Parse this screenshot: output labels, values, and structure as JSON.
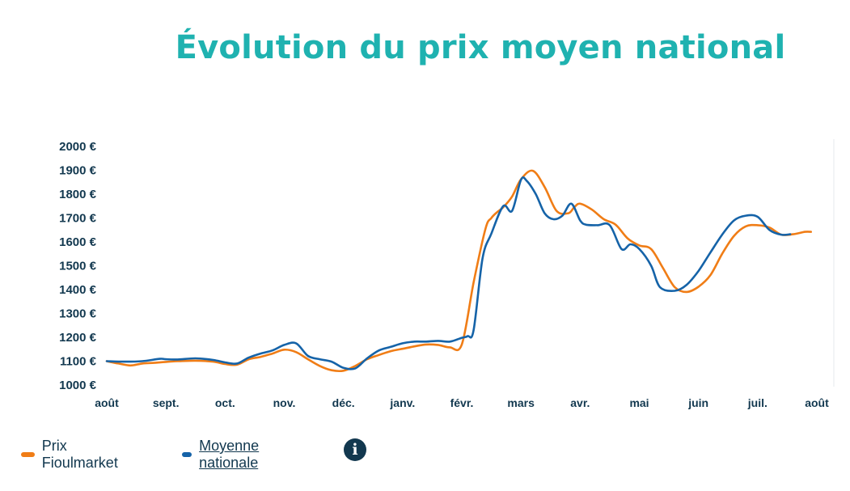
{
  "chart_data": {
    "type": "line",
    "title": "Évolution du prix moyen national",
    "xlabel": "",
    "ylabel": "",
    "ylim": [
      1000,
      2000
    ],
    "yticks": [
      "2000 €",
      "1900 €",
      "1800 €",
      "1700 €",
      "1600 €",
      "1500 €",
      "1400 €",
      "1300 €",
      "1200 €",
      "1100 €",
      "1000 €"
    ],
    "ytick_values": [
      2000,
      1900,
      1800,
      1700,
      1600,
      1500,
      1400,
      1300,
      1200,
      1100,
      1000
    ],
    "xticks": [
      "août",
      "sept.",
      "oct.",
      "nov.",
      "déc.",
      "janv.",
      "févr.",
      "mars",
      "avr.",
      "mai",
      "juin",
      "juil.",
      "août"
    ],
    "xlim": [
      0,
      12
    ],
    "grid": false,
    "legend_position": "bottom-left",
    "series": [
      {
        "name": "Prix Fioulmarket",
        "color": "#f07d16",
        "x": [
          0,
          0.2,
          0.4,
          0.6,
          0.8,
          1.0,
          1.2,
          1.5,
          1.8,
          2.0,
          2.2,
          2.4,
          2.6,
          2.8,
          3.0,
          3.2,
          3.4,
          3.6,
          3.8,
          4.0,
          4.2,
          4.4,
          4.6,
          4.8,
          5.0,
          5.2,
          5.4,
          5.6,
          5.8,
          6.0,
          6.2,
          6.4,
          6.5,
          6.6,
          6.7,
          6.85,
          7.0,
          7.2,
          7.4,
          7.6,
          7.8,
          7.9,
          8.0,
          8.2,
          8.4,
          8.6,
          8.8,
          9.0,
          9.2,
          9.4,
          9.6,
          9.8,
          10.0,
          10.2,
          10.4,
          10.6,
          10.8,
          11.0,
          11.2,
          11.4,
          11.6,
          11.8,
          11.9
        ],
        "values": [
          1100,
          1090,
          1082,
          1090,
          1093,
          1097,
          1100,
          1102,
          1098,
          1088,
          1085,
          1108,
          1118,
          1132,
          1148,
          1138,
          1108,
          1080,
          1062,
          1060,
          1080,
          1108,
          1126,
          1142,
          1152,
          1162,
          1170,
          1168,
          1158,
          1170,
          1430,
          1655,
          1700,
          1725,
          1745,
          1790,
          1862,
          1898,
          1830,
          1730,
          1720,
          1745,
          1760,
          1735,
          1695,
          1672,
          1615,
          1585,
          1570,
          1490,
          1410,
          1390,
          1412,
          1460,
          1550,
          1625,
          1665,
          1670,
          1660,
          1630,
          1632,
          1642,
          1642
        ]
      },
      {
        "name": "Moyenne nationale",
        "color": "#1563a8",
        "x": [
          0,
          0.3,
          0.6,
          0.9,
          1.0,
          1.2,
          1.5,
          1.8,
          2.0,
          2.2,
          2.4,
          2.6,
          2.8,
          3.0,
          3.2,
          3.4,
          3.6,
          3.8,
          4.0,
          4.2,
          4.4,
          4.6,
          4.8,
          5.0,
          5.2,
          5.4,
          5.6,
          5.8,
          6.0,
          6.1,
          6.2,
          6.35,
          6.5,
          6.7,
          6.85,
          7.0,
          7.1,
          7.25,
          7.4,
          7.55,
          7.7,
          7.85,
          8.0,
          8.1,
          8.3,
          8.5,
          8.7,
          8.85,
          9.0,
          9.2,
          9.35,
          9.6,
          9.8,
          10.0,
          10.2,
          10.4,
          10.6,
          10.8,
          11.0,
          11.2,
          11.4,
          11.55
        ],
        "values": [
          1100,
          1098,
          1100,
          1110,
          1108,
          1107,
          1112,
          1105,
          1095,
          1090,
          1115,
          1132,
          1145,
          1168,
          1175,
          1122,
          1108,
          1098,
          1072,
          1070,
          1112,
          1145,
          1160,
          1175,
          1182,
          1182,
          1185,
          1182,
          1198,
          1205,
          1230,
          1530,
          1635,
          1750,
          1730,
          1860,
          1855,
          1800,
          1720,
          1695,
          1710,
          1760,
          1690,
          1672,
          1670,
          1670,
          1570,
          1590,
          1570,
          1500,
          1410,
          1395,
          1420,
          1478,
          1555,
          1630,
          1690,
          1710,
          1705,
          1650,
          1630,
          1632
        ]
      }
    ]
  },
  "legend": {
    "items": [
      {
        "label": "Prix Fioulmarket"
      },
      {
        "label": "Moyenne nationale"
      }
    ],
    "info_icon": "info-circle-icon",
    "info_glyph": "i"
  }
}
